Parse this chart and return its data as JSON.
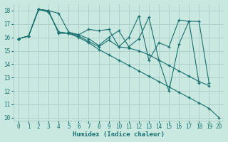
{
  "xlabel": "Humidex (Indice chaleur)",
  "bg_color": "#c8e8e0",
  "grid_color": "#b0d0cc",
  "line_color": "#1a7070",
  "line1": [
    15.9,
    16.1,
    18.1,
    18.0,
    17.8,
    16.4,
    16.2,
    16.6,
    16.5,
    16.6,
    15.3,
    16.0,
    17.6,
    14.3,
    15.6,
    15.3,
    17.3,
    17.2,
    12.6,
    null,
    null
  ],
  "line2": [
    15.9,
    16.1,
    18.1,
    18.0,
    16.3,
    16.3,
    16.2,
    15.9,
    15.4,
    16.0,
    16.5,
    15.3,
    15.9,
    17.5,
    14.3,
    12.0,
    15.5,
    17.2,
    17.2,
    12.6,
    null
  ],
  "line3": [
    15.9,
    16.1,
    18.1,
    17.9,
    16.4,
    16.3,
    16.1,
    15.7,
    15.3,
    15.8,
    15.3,
    15.2,
    15.0,
    14.7,
    14.3,
    13.9,
    13.5,
    13.1,
    12.7,
    12.4,
    null
  ],
  "line4": [
    15.9,
    16.1,
    18.1,
    17.9,
    16.4,
    16.3,
    16.0,
    15.6,
    15.1,
    14.7,
    14.3,
    13.9,
    13.5,
    13.1,
    12.7,
    12.3,
    11.9,
    11.5,
    11.1,
    10.7,
    10.0
  ],
  "xlim": [
    0,
    20
  ],
  "ylim": [
    10,
    18.5
  ],
  "yticks": [
    10,
    11,
    12,
    13,
    14,
    15,
    16,
    17,
    18
  ],
  "xticks": [
    0,
    1,
    2,
    3,
    4,
    5,
    6,
    7,
    8,
    9,
    10,
    11,
    12,
    13,
    14,
    15,
    16,
    17,
    18,
    19,
    20
  ]
}
